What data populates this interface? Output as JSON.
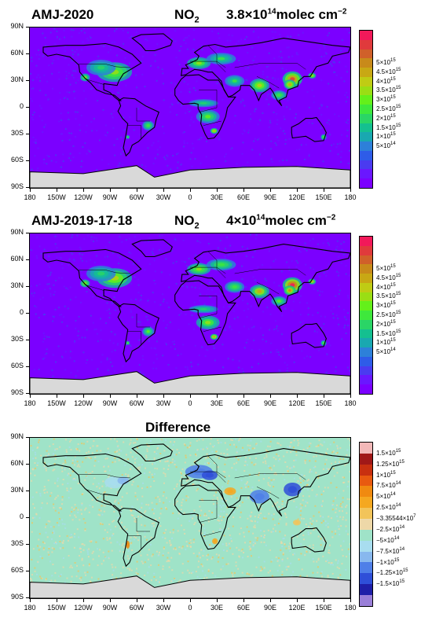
{
  "panels": [
    {
      "title_left": "AMJ-2020",
      "species": "NO",
      "species_sub": "2",
      "stat_value": "3.8×10",
      "stat_exp": "14",
      "units": "molec cm",
      "units_exp": "−2",
      "colors": [
        "#7b00ff",
        "#6a17ff",
        "#4a3bf0",
        "#2e5ce8",
        "#2d80d9",
        "#19a8b0",
        "#14c090",
        "#2ad566",
        "#3ee83c",
        "#64f01a",
        "#9ade14",
        "#bfcc14",
        "#c8a814",
        "#c88a1a",
        "#d0602a",
        "#e03a3c",
        "#f2195a"
      ],
      "labels": [
        "5×10^14",
        "1×10^15",
        "1.5×10^15",
        "2×10^15",
        "2.5×10^15",
        "3×10^15",
        "3.5×10^15",
        "4×10^15",
        "4.5×10^15",
        "5×10^15"
      ]
    },
    {
      "title_left": "AMJ-2019-17-18",
      "species": "NO",
      "species_sub": "2",
      "stat_value": "4×10",
      "stat_exp": "14",
      "units": "molec cm",
      "units_exp": "−2",
      "colors": [
        "#7b00ff",
        "#6a17ff",
        "#4a3bf0",
        "#2e5ce8",
        "#2d80d9",
        "#19a8b0",
        "#14c090",
        "#2ad566",
        "#3ee83c",
        "#64f01a",
        "#9ade14",
        "#bfcc14",
        "#c8a814",
        "#c88a1a",
        "#d0602a",
        "#e03a3c",
        "#f2195a"
      ],
      "labels": [
        "5×10^14",
        "1×10^15",
        "1.5×10^15",
        "2×10^15",
        "2.5×10^15",
        "3×10^15",
        "3.5×10^15",
        "4×10^15",
        "4.5×10^15",
        "5×10^15"
      ]
    },
    {
      "title_center": "Difference",
      "colors": [
        "#9a7fd8",
        "#1f1fa8",
        "#2f4fd8",
        "#4f7fe8",
        "#88b8ee",
        "#a8ddef",
        "#9fe3c8",
        "#eed8a8",
        "#f2c45a",
        "#f5a820",
        "#f08a10",
        "#e85a10",
        "#c83010",
        "#a01818",
        "#f2b8b8"
      ],
      "labels": [
        "−1.5×10^15",
        "−1.25×10^15",
        "−1×10^15",
        "−7.5×10^14",
        "−5×10^14",
        "−2.5×10^14",
        "−3.35544×10^7",
        "2.5×10^14",
        "5×10^14",
        "7.5×10^14",
        "1×10^15",
        "1.25×10^15",
        "1.5×10^15"
      ]
    }
  ],
  "axes": {
    "lat_labels": [
      "90N",
      "60N",
      "30N",
      "0",
      "30S",
      "60S",
      "90S"
    ],
    "lon_labels": [
      "180",
      "150W",
      "120W",
      "90W",
      "60W",
      "30W",
      "0",
      "30E",
      "60E",
      "90E",
      "120E",
      "150E",
      "180"
    ]
  }
}
